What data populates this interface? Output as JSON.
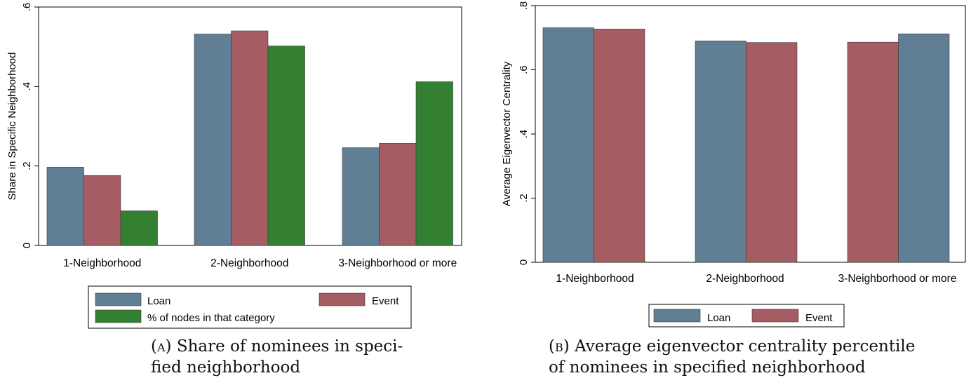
{
  "chart_data": [
    {
      "type": "bar",
      "categories": [
        "1-Neighborhood",
        "2-Neighborhood",
        "3-Neighborhood or more"
      ],
      "series": [
        {
          "name": "Loan",
          "values": [
            0.197,
            0.532,
            0.246
          ],
          "color": "#607f94"
        },
        {
          "name": "Event",
          "values": [
            0.176,
            0.54,
            0.257
          ],
          "color": "#a55c62"
        },
        {
          "name": "% of nodes in that category",
          "values": [
            0.087,
            0.502,
            0.412
          ],
          "color": "#338033"
        }
      ],
      "ylabel": "Share in Specific Neighborhood",
      "ylim": [
        0,
        0.6
      ],
      "yticks": [
        0,
        0.2,
        0.4,
        0.6
      ],
      "ytick_labels": [
        "0",
        ".2",
        ".4",
        ".6"
      ],
      "grid": false,
      "legend_position": "bottom",
      "caption_label": "(a)",
      "caption_line1": "Share of nominees in speci-",
      "caption_line2": "fied neighborhood"
    },
    {
      "type": "bar",
      "categories": [
        "1-Neighborhood",
        "2-Neighborhood",
        "3-Neighborhood or more"
      ],
      "bars": [
        [
          {
            "series": "Loan",
            "value": 0.731
          },
          {
            "series": "Event",
            "value": 0.727
          }
        ],
        [
          {
            "series": "Loan",
            "value": 0.69
          },
          {
            "series": "Event",
            "value": 0.685
          }
        ],
        [
          {
            "series": "Event",
            "value": 0.686
          },
          {
            "series": "Loan",
            "value": 0.712
          }
        ]
      ],
      "series": [
        {
          "name": "Loan",
          "color": "#607f94"
        },
        {
          "name": "Event",
          "color": "#a55c62"
        }
      ],
      "ylabel": "Average Eigenvector Centrality",
      "ylim": [
        0,
        0.8
      ],
      "yticks": [
        0,
        0.2,
        0.4,
        0.6,
        0.8
      ],
      "ytick_labels": [
        "0",
        ".2",
        ".4",
        ".6",
        ".8"
      ],
      "grid": false,
      "legend_position": "bottom",
      "caption_label": "(b)",
      "caption_line1": "Average eigenvector centrality percentile",
      "caption_line2": "of nominees in specified neighborhood"
    }
  ]
}
